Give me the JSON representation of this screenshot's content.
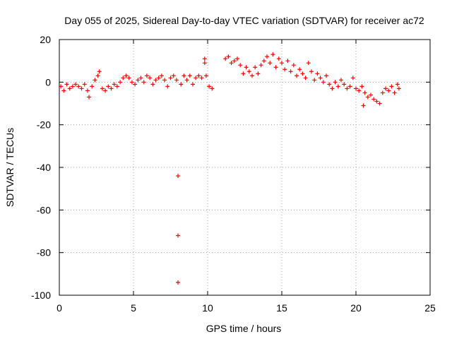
{
  "chart_data": {
    "type": "scatter",
    "title": "Day 055 of 2025, Sidereal Day-to-day VTEC variation (SDTVAR) for receiver ac72",
    "xlabel": "GPS time / hours",
    "ylabel": "SDTVAR / TECUs",
    "xlim": [
      0,
      25
    ],
    "ylim": [
      -100,
      20
    ],
    "xticks": [
      "0",
      "5",
      "10",
      "15",
      "20",
      "25"
    ],
    "yticks": [
      "20",
      "0",
      "-20",
      "-40",
      "-60",
      "-80",
      "-100"
    ],
    "grid": true,
    "marker": "+",
    "color": "#ff0000",
    "series": [
      {
        "name": "SDTVAR",
        "points": [
          [
            0.1,
            -2
          ],
          [
            0.3,
            -4
          ],
          [
            0.5,
            -1
          ],
          [
            0.7,
            -3
          ],
          [
            0.9,
            -2
          ],
          [
            1.1,
            -1
          ],
          [
            1.3,
            -2
          ],
          [
            1.5,
            -3
          ],
          [
            1.7,
            -1
          ],
          [
            1.9,
            -4
          ],
          [
            2.0,
            -7
          ],
          [
            2.2,
            -2
          ],
          [
            2.4,
            1
          ],
          [
            2.6,
            3
          ],
          [
            2.7,
            5
          ],
          [
            2.9,
            -3
          ],
          [
            3.1,
            -4
          ],
          [
            3.3,
            -2
          ],
          [
            3.5,
            -3
          ],
          [
            3.7,
            -1
          ],
          [
            3.9,
            -2
          ],
          [
            4.1,
            0
          ],
          [
            4.3,
            2
          ],
          [
            4.5,
            3
          ],
          [
            4.7,
            2
          ],
          [
            4.9,
            0
          ],
          [
            5.1,
            -1
          ],
          [
            5.3,
            1
          ],
          [
            5.5,
            2
          ],
          [
            5.7,
            0
          ],
          [
            5.9,
            3
          ],
          [
            6.1,
            2
          ],
          [
            6.3,
            -1
          ],
          [
            6.5,
            1
          ],
          [
            6.7,
            2
          ],
          [
            6.9,
            3
          ],
          [
            7.1,
            1
          ],
          [
            7.3,
            -2
          ],
          [
            7.5,
            2
          ],
          [
            7.7,
            3
          ],
          [
            7.9,
            1
          ],
          [
            8.0,
            -44
          ],
          [
            8.0,
            -72
          ],
          [
            8.0,
            -94
          ],
          [
            8.2,
            -1
          ],
          [
            8.4,
            3
          ],
          [
            8.6,
            1
          ],
          [
            8.8,
            3
          ],
          [
            9.0,
            -1
          ],
          [
            9.2,
            2
          ],
          [
            9.4,
            3
          ],
          [
            9.6,
            2
          ],
          [
            9.8,
            11
          ],
          [
            9.8,
            9
          ],
          [
            9.9,
            3
          ],
          [
            10.1,
            -2
          ],
          [
            10.3,
            -3
          ],
          [
            11.2,
            11
          ],
          [
            11.4,
            12
          ],
          [
            11.6,
            9
          ],
          [
            11.8,
            10
          ],
          [
            12.0,
            11
          ],
          [
            12.2,
            8
          ],
          [
            12.4,
            4
          ],
          [
            12.6,
            7
          ],
          [
            12.8,
            5
          ],
          [
            13.0,
            3
          ],
          [
            13.2,
            7
          ],
          [
            13.4,
            4
          ],
          [
            13.6,
            8
          ],
          [
            13.8,
            10
          ],
          [
            14.0,
            12
          ],
          [
            14.2,
            9
          ],
          [
            14.4,
            13
          ],
          [
            14.6,
            7
          ],
          [
            14.8,
            11
          ],
          [
            15.0,
            9
          ],
          [
            15.2,
            6
          ],
          [
            15.4,
            10
          ],
          [
            15.6,
            5
          ],
          [
            15.8,
            8
          ],
          [
            16.0,
            3
          ],
          [
            16.2,
            6
          ],
          [
            16.4,
            4
          ],
          [
            16.6,
            2
          ],
          [
            16.8,
            9
          ],
          [
            17.0,
            5
          ],
          [
            17.2,
            1
          ],
          [
            17.4,
            4
          ],
          [
            17.6,
            2
          ],
          [
            17.8,
            0
          ],
          [
            18.0,
            3
          ],
          [
            18.2,
            -1
          ],
          [
            18.4,
            -3
          ],
          [
            18.6,
            0
          ],
          [
            18.8,
            -2
          ],
          [
            19.0,
            1
          ],
          [
            19.2,
            -1
          ],
          [
            19.4,
            -3
          ],
          [
            19.6,
            -2
          ],
          [
            19.8,
            2
          ],
          [
            20.0,
            -3
          ],
          [
            20.2,
            -4
          ],
          [
            20.4,
            -2
          ],
          [
            20.5,
            -11
          ],
          [
            20.6,
            -5
          ],
          [
            20.8,
            -7
          ],
          [
            21.0,
            -6
          ],
          [
            21.2,
            -8
          ],
          [
            21.4,
            -9
          ],
          [
            21.6,
            -10
          ],
          [
            21.8,
            -5
          ],
          [
            22.0,
            -3
          ],
          [
            22.2,
            -4
          ],
          [
            22.4,
            -2
          ],
          [
            22.6,
            -5
          ],
          [
            22.8,
            -1
          ],
          [
            22.9,
            -3
          ]
        ]
      }
    ]
  }
}
